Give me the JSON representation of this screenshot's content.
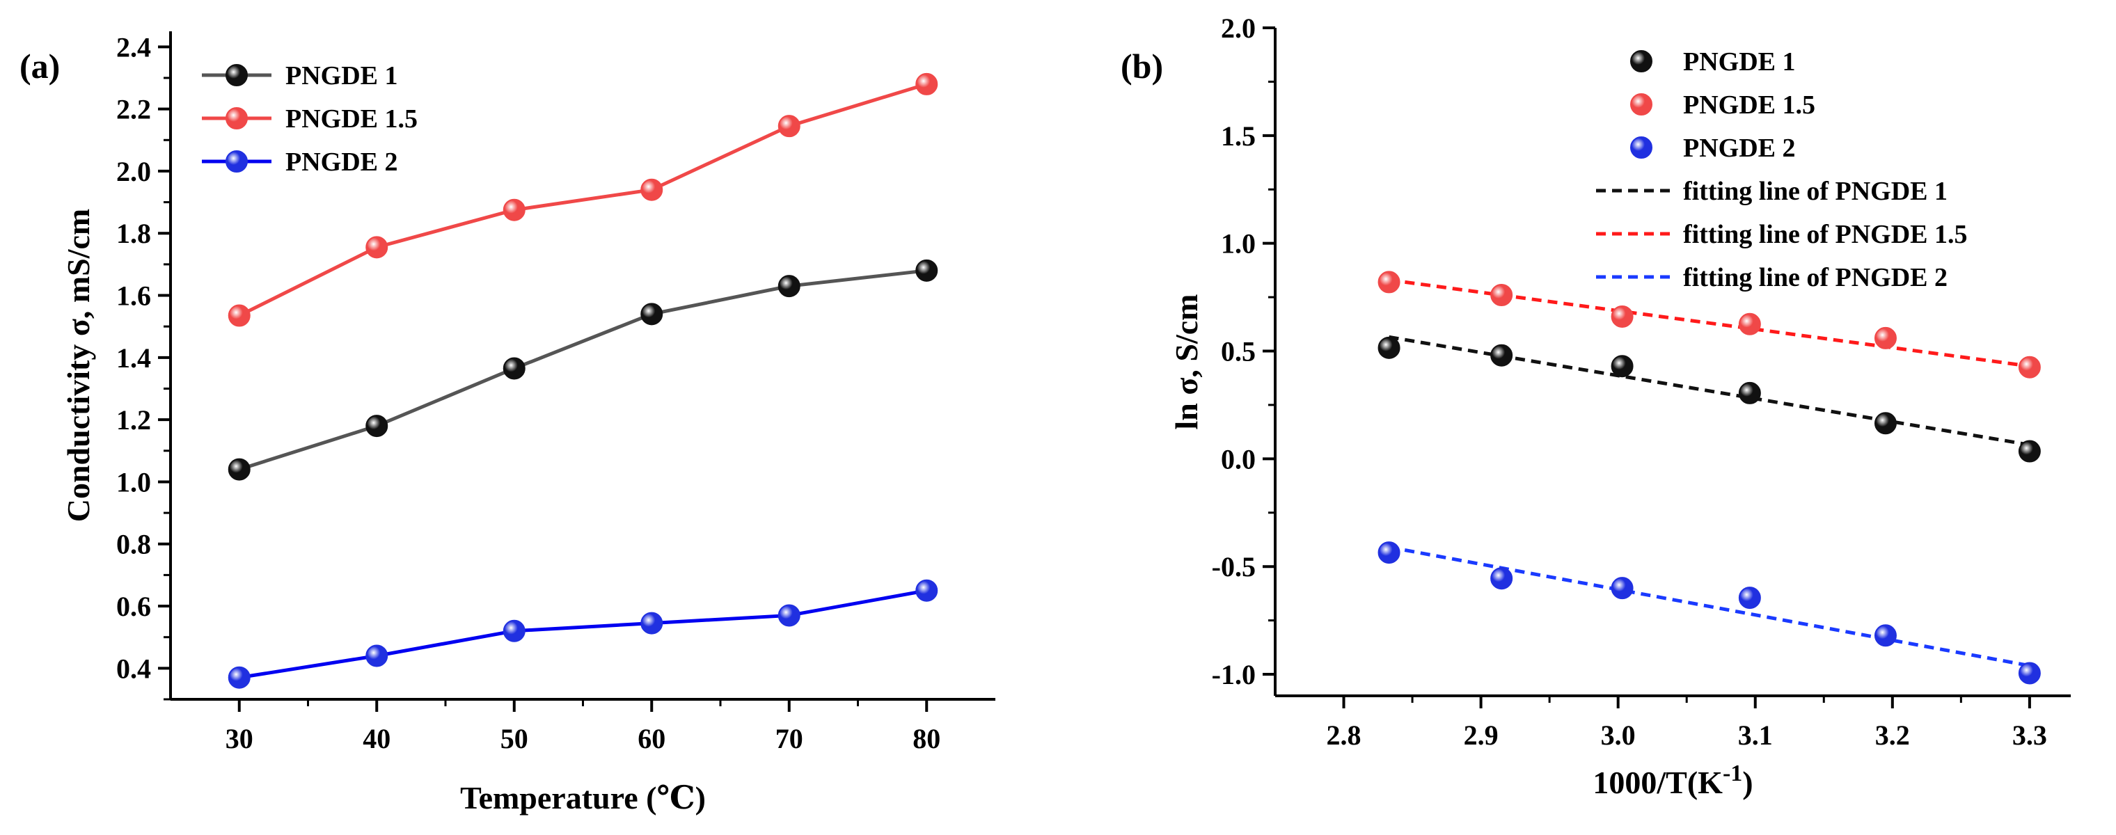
{
  "panels": {
    "a": {
      "label": "(a)"
    },
    "b": {
      "label": "(b)"
    }
  },
  "chart_data": [
    {
      "type": "line",
      "title": "",
      "xlabel": "Temperature (℃)",
      "ylabel": "Conductivity σ, mS/cm",
      "xlim": [
        25,
        85
      ],
      "ylim": [
        0.3,
        2.45
      ],
      "xticks": [
        30,
        40,
        50,
        60,
        70,
        80
      ],
      "yticks": [
        0.4,
        0.6,
        0.8,
        1.0,
        1.2,
        1.4,
        1.6,
        1.8,
        2.0,
        2.2,
        2.4
      ],
      "xtick_labels": [
        "30",
        "40",
        "50",
        "60",
        "70",
        "80"
      ],
      "ytick_labels": [
        "0.4",
        "0.6",
        "0.8",
        "1.0",
        "1.2",
        "1.4",
        "1.6",
        "1.8",
        "2.0",
        "2.2",
        "2.4"
      ],
      "legend_position": "top-left",
      "x": [
        30,
        40,
        50,
        60,
        70,
        80
      ],
      "series": [
        {
          "name": "PNGDE 1",
          "color": "#111111",
          "line_color": "#555555",
          "values": [
            1.04,
            1.18,
            1.365,
            1.54,
            1.63,
            1.68
          ]
        },
        {
          "name": "PNGDE 1.5",
          "color": "#f04848",
          "line_color": "#f04848",
          "values": [
            1.535,
            1.755,
            1.875,
            1.94,
            2.145,
            2.28
          ]
        },
        {
          "name": "PNGDE 2",
          "color": "#2030e0",
          "line_color": "#0000f0",
          "values": [
            0.37,
            0.44,
            0.52,
            0.545,
            0.57,
            0.65
          ]
        }
      ]
    },
    {
      "type": "scatter",
      "title": "",
      "xlabel_main": "1000/T(K",
      "xlabel_sup": "-1",
      "xlabel_end": ")",
      "ylabel": "ln σ, S/cm",
      "xlim": [
        2.75,
        3.33
      ],
      "ylim": [
        -1.1,
        2.0
      ],
      "xticks": [
        2.8,
        2.9,
        3.0,
        3.1,
        3.2,
        3.3
      ],
      "yticks": [
        -1.0,
        -0.5,
        0.0,
        0.5,
        1.0,
        1.5,
        2.0
      ],
      "xtick_labels": [
        "2.8",
        "2.9",
        "3.0",
        "3.1",
        "3.2",
        "3.3"
      ],
      "ytick_labels": [
        "-1.0",
        "-0.5",
        "0.0",
        "0.5",
        "1.0",
        "1.5",
        "2.0"
      ],
      "legend_position": "top-right",
      "x": [
        2.833,
        2.915,
        3.003,
        3.096,
        3.195,
        3.3
      ],
      "series": [
        {
          "name": "PNGDE 1",
          "color": "#111111",
          "values": [
            0.515,
            0.48,
            0.43,
            0.305,
            0.165,
            0.035
          ]
        },
        {
          "name": "PNGDE 1.5",
          "color": "#f04848",
          "values": [
            0.82,
            0.76,
            0.66,
            0.625,
            0.56,
            0.425
          ]
        },
        {
          "name": "PNGDE 2",
          "color": "#2030e0",
          "values": [
            -0.435,
            -0.555,
            -0.6,
            -0.645,
            -0.82,
            -0.995
          ]
        }
      ],
      "fits": [
        {
          "name": "fitting line of   PNGDE 1",
          "color": "#111111",
          "x": [
            2.833,
            3.3
          ],
          "y": [
            0.565,
            0.065
          ]
        },
        {
          "name": "fitting line of  PNGDE 1.5",
          "color": "#ff1a1a",
          "x": [
            2.833,
            3.3
          ],
          "y": [
            0.83,
            0.43
          ]
        },
        {
          "name": "fitting line of  PNGDE 2",
          "color": "#1a3aff",
          "x": [
            2.833,
            3.3
          ],
          "y": [
            -0.41,
            -0.96
          ]
        }
      ]
    }
  ]
}
